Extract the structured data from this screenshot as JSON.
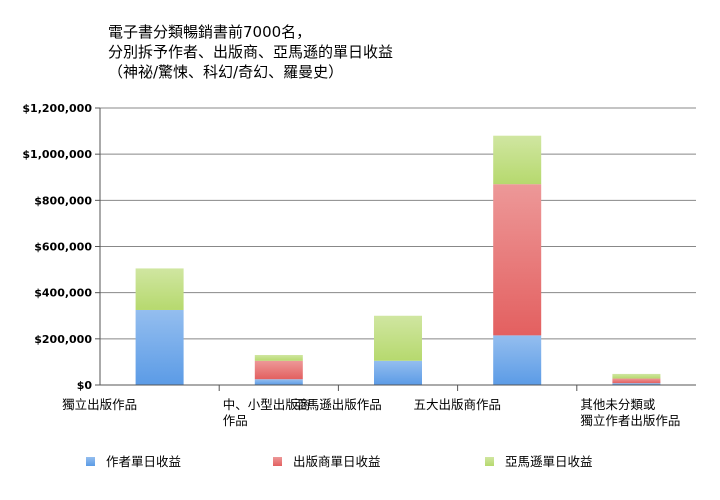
{
  "title_lines": [
    "電子書分類暢銷書前7000名，",
    "分別拆予作者、出版商、亞馬遜的單日收益",
    "（神祕/驚悚、科幻/奇幻、羅曼史）"
  ],
  "chart_data": {
    "type": "bar",
    "stacked": true,
    "categories": [
      [
        "獨立出版作品"
      ],
      [
        "中、小型出版商",
        "作品"
      ],
      [
        "亞馬遜出版作品"
      ],
      [
        "五大出版商作品"
      ],
      [
        "其他未分類或",
        "獨立作者出版作品"
      ]
    ],
    "series": [
      {
        "name": "作者單日收益",
        "color": "#5b9be6",
        "values": [
          325000,
          25000,
          105000,
          215000,
          8000
        ]
      },
      {
        "name": "出版商單日收益",
        "color": "#e36060",
        "values": [
          0,
          80000,
          0,
          655000,
          20000
        ]
      },
      {
        "name": "亞馬遜單日收益",
        "color": "#b6d96e",
        "values": [
          180000,
          25000,
          195000,
          210000,
          20000
        ]
      }
    ],
    "y_ticks": [
      0,
      200000,
      400000,
      600000,
      800000,
      1000000,
      1200000
    ],
    "y_tick_labels": [
      "$0",
      "$200,000",
      "$400,000",
      "$600,000",
      "$800,000",
      "$1,000,000",
      "$1,200,000"
    ],
    "ylim": [
      0,
      1200000
    ],
    "grid": true,
    "legend_position": "bottom"
  }
}
